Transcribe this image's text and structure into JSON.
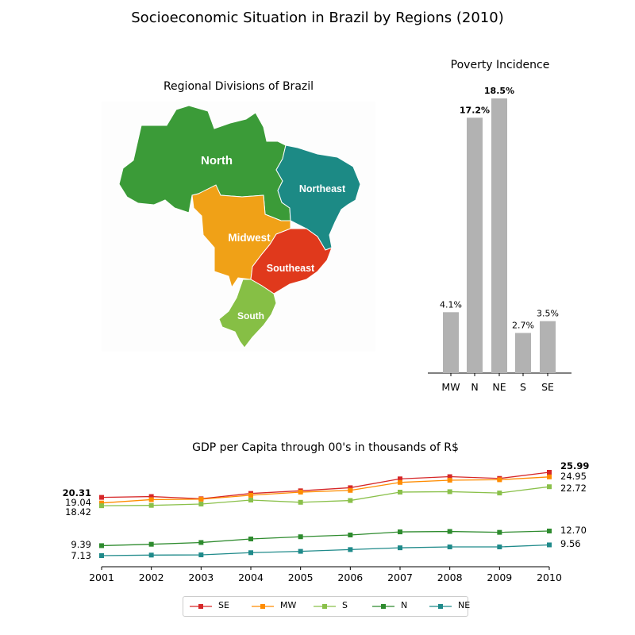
{
  "title": "Socioeconomic Situation in Brazil by Regions (2010)",
  "map": {
    "title": "Regional Divisions of Brazil",
    "regions": [
      {
        "name": "North",
        "color": "#3b9b38"
      },
      {
        "name": "Northeast",
        "color": "#1c8a85"
      },
      {
        "name": "Midwest",
        "color": "#f0a117"
      },
      {
        "name": "Southeast",
        "color": "#e0391c"
      },
      {
        "name": "South",
        "color": "#86bf45"
      }
    ]
  },
  "chart_data": [
    {
      "type": "bar",
      "title": "Poverty Incidence",
      "categories": [
        "MW",
        "N",
        "NE",
        "S",
        "SE"
      ],
      "values": [
        4.1,
        17.2,
        18.5,
        2.7,
        3.5
      ],
      "value_labels": [
        "4.1%",
        "17.2%",
        "18.5%",
        "2.7%",
        "3.5%"
      ],
      "bold_labels": [
        false,
        true,
        true,
        false,
        false
      ],
      "bar_color": "#b2b2b2",
      "ylim": [
        0,
        18.5
      ]
    },
    {
      "type": "line",
      "title": "GDP per Capita through 00's in thousands of R$",
      "x": [
        "2001",
        "2002",
        "2003",
        "2004",
        "2005",
        "2006",
        "2007",
        "2008",
        "2009",
        "2010"
      ],
      "ylim": [
        6.0,
        28.0
      ],
      "legend_position": "bottom",
      "series": [
        {
          "name": "SE",
          "color": "#d62728",
          "values": [
            20.31,
            20.5,
            20.0,
            21.2,
            21.8,
            22.5,
            24.5,
            25.0,
            24.6,
            25.99
          ]
        },
        {
          "name": "MW",
          "color": "#ff8c00",
          "values": [
            19.04,
            19.8,
            19.9,
            20.8,
            21.5,
            21.9,
            23.7,
            24.2,
            24.3,
            24.95
          ]
        },
        {
          "name": "S",
          "color": "#8ac04a",
          "values": [
            18.42,
            18.5,
            18.8,
            19.7,
            19.2,
            19.6,
            21.5,
            21.6,
            21.3,
            22.72
          ]
        },
        {
          "name": "N",
          "color": "#2e8b2e",
          "values": [
            9.39,
            9.7,
            10.1,
            10.9,
            11.4,
            11.8,
            12.5,
            12.6,
            12.4,
            12.7
          ]
        },
        {
          "name": "NE",
          "color": "#1f8a8a",
          "values": [
            7.13,
            7.25,
            7.3,
            7.8,
            8.1,
            8.5,
            8.9,
            9.1,
            9.1,
            9.56
          ]
        }
      ],
      "start_labels": [
        {
          "series": "SE",
          "text": "20.31",
          "bold": true
        },
        {
          "series": "MW",
          "text": "19.04",
          "bold": false
        },
        {
          "series": "S",
          "text": "18.42",
          "bold": false
        },
        {
          "series": "N",
          "text": "9.39",
          "bold": false
        },
        {
          "series": "NE",
          "text": "7.13",
          "bold": false
        }
      ],
      "end_labels": [
        {
          "series": "SE",
          "text": "25.99",
          "bold": true
        },
        {
          "series": "MW",
          "text": "24.95",
          "bold": false
        },
        {
          "series": "S",
          "text": "22.72",
          "bold": false
        },
        {
          "series": "N",
          "text": "12.70",
          "bold": false
        },
        {
          "series": "NE",
          "text": "9.56",
          "bold": false
        }
      ]
    }
  ]
}
